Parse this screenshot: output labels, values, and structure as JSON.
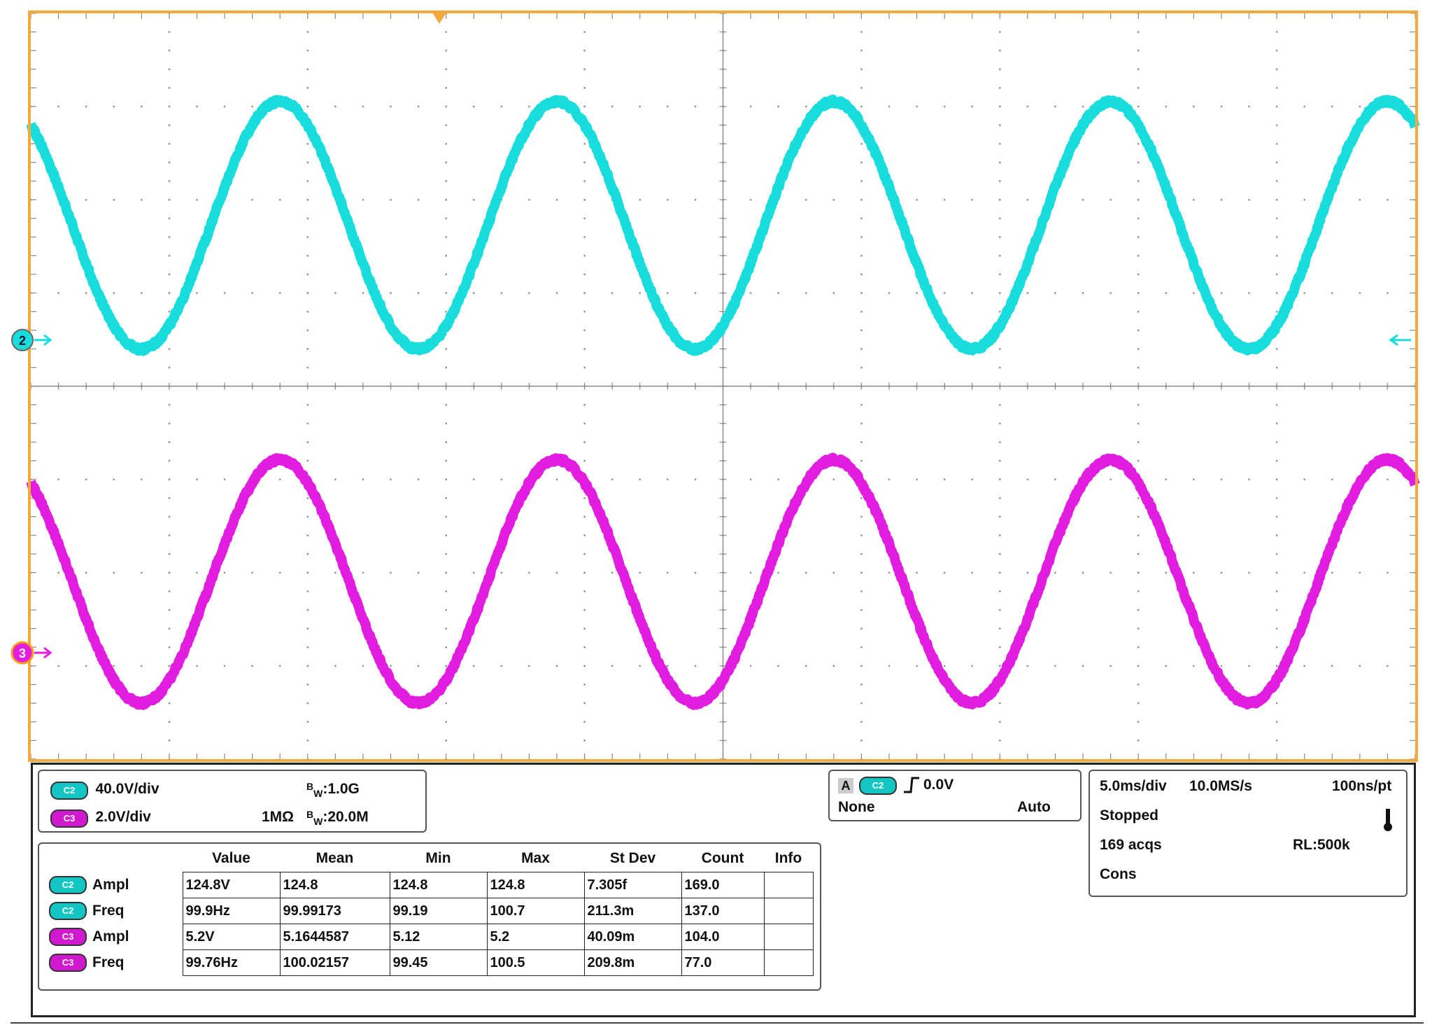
{
  "colors": {
    "frame": "#f4a93c",
    "grid": "#8a8a8a",
    "ch2": "#19dcdc",
    "ch3": "#e21de0",
    "ch3_marker_ring": "#ff9a1c"
  },
  "scope": {
    "ch2_marker": "2",
    "ch3_marker": "3",
    "trigger_marker_icon": "trigger-position-icon",
    "ch2_waveform": {
      "cycles_on_screen": 5,
      "divisions": 10,
      "time_per_div_ms": 5.0,
      "frequency_hz": 99.9
    },
    "ch3_waveform": {
      "cycles_on_screen": 5,
      "frequency_hz": 99.76
    }
  },
  "vertical": {
    "c2": {
      "tag": "C2",
      "scale": "40.0V/div",
      "bw": ":1.0G",
      "bw_label": "B",
      "bw_sub": "W",
      "impedance": ""
    },
    "c3": {
      "tag": "C3",
      "scale": "2.0V/div",
      "bw": ":20.0M",
      "bw_label": "B",
      "bw_sub": "W",
      "impedance": "1MΩ"
    }
  },
  "trigger": {
    "label": "A",
    "source": "C2",
    "level": "0.0V",
    "coupling": "None",
    "mode": "Auto",
    "edge_icon": "rising-edge-icon"
  },
  "horizontal": {
    "time_div": "5.0ms/div",
    "sample_rate": "10.0MS/s",
    "resolution": "100ns/pt",
    "state": "Stopped",
    "acqs": "169 acqs",
    "record_length": "RL:500k",
    "mode": "Cons",
    "thermometer_icon": "thermometer-icon"
  },
  "measurements": {
    "headers": [
      "Value",
      "Mean",
      "Min",
      "Max",
      "St Dev",
      "Count",
      "Info"
    ],
    "rows": [
      {
        "tag": "C2",
        "name": "Ampl",
        "cells": [
          "124.8V",
          "124.8",
          "124.8",
          "124.8",
          "7.305f",
          "169.0",
          ""
        ]
      },
      {
        "tag": "C2",
        "name": "Freq",
        "cells": [
          "99.9Hz",
          "99.99173",
          "99.19",
          "100.7",
          "211.3m",
          "137.0",
          ""
        ]
      },
      {
        "tag": "C3",
        "name": "Ampl",
        "cells": [
          "5.2V",
          "5.1644587",
          "5.12",
          "5.2",
          "40.09m",
          "104.0",
          ""
        ]
      },
      {
        "tag": "C3",
        "name": "Freq",
        "cells": [
          "99.76Hz",
          "100.02157",
          "99.45",
          "100.5",
          "209.8m",
          "77.0",
          ""
        ]
      }
    ]
  }
}
